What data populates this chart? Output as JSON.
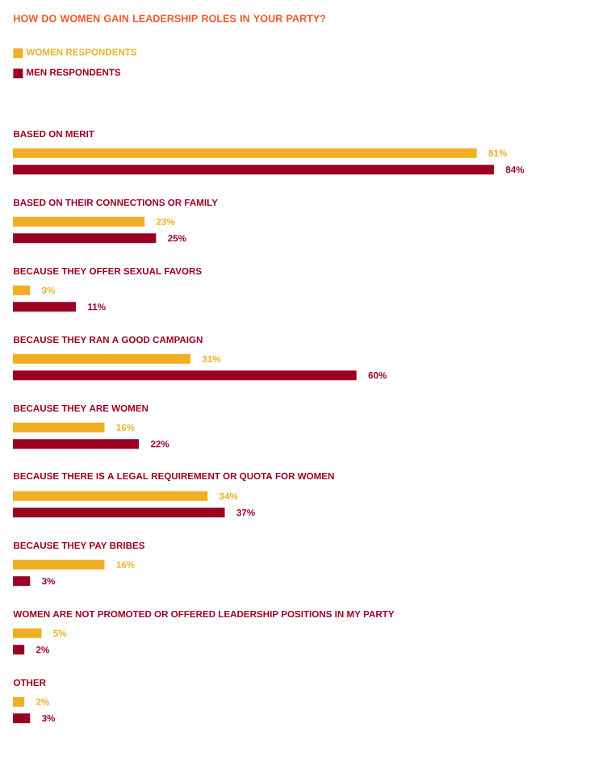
{
  "chart_data": {
    "type": "bar",
    "orientation": "horizontal",
    "title": "HOW DO WOMEN GAIN LEADERSHIP ROLES IN YOUR PARTY?",
    "categories": [
      "BASED ON MERIT",
      "BASED ON THEIR CONNECTIONS OR FAMILY",
      "BECAUSE THEY OFFER SEXUAL FAVORS",
      "BECAUSE THEY RAN A GOOD CAMPAIGN",
      "BECAUSE THEY ARE WOMEN",
      "BECAUSE THERE IS A LEGAL REQUIREMENT OR QUOTA FOR WOMEN",
      "BECAUSE THEY PAY BRIBES",
      "WOMEN ARE NOT PROMOTED OR OFFERED LEADERSHIP POSITIONS IN MY PARTY",
      "OTHER"
    ],
    "series": [
      {
        "name": "WOMEN RESPONDENTS",
        "color": "#f0ae24",
        "values": [
          81,
          23,
          3,
          31,
          16,
          34,
          16,
          5,
          2
        ],
        "value_labels": [
          "81%",
          "23%",
          "3%",
          "31%",
          "16%",
          "34%",
          "16%",
          "5%",
          "2%"
        ]
      },
      {
        "name": "MEN RESPONDENTS",
        "color": "#9b0022",
        "values": [
          84,
          25,
          11,
          60,
          22,
          37,
          3,
          2,
          3
        ],
        "value_labels": [
          "84%",
          "25%",
          "11%",
          "60%",
          "22%",
          "37%",
          "3%",
          "2%",
          "3%"
        ]
      }
    ],
    "legend": "top left"
  }
}
